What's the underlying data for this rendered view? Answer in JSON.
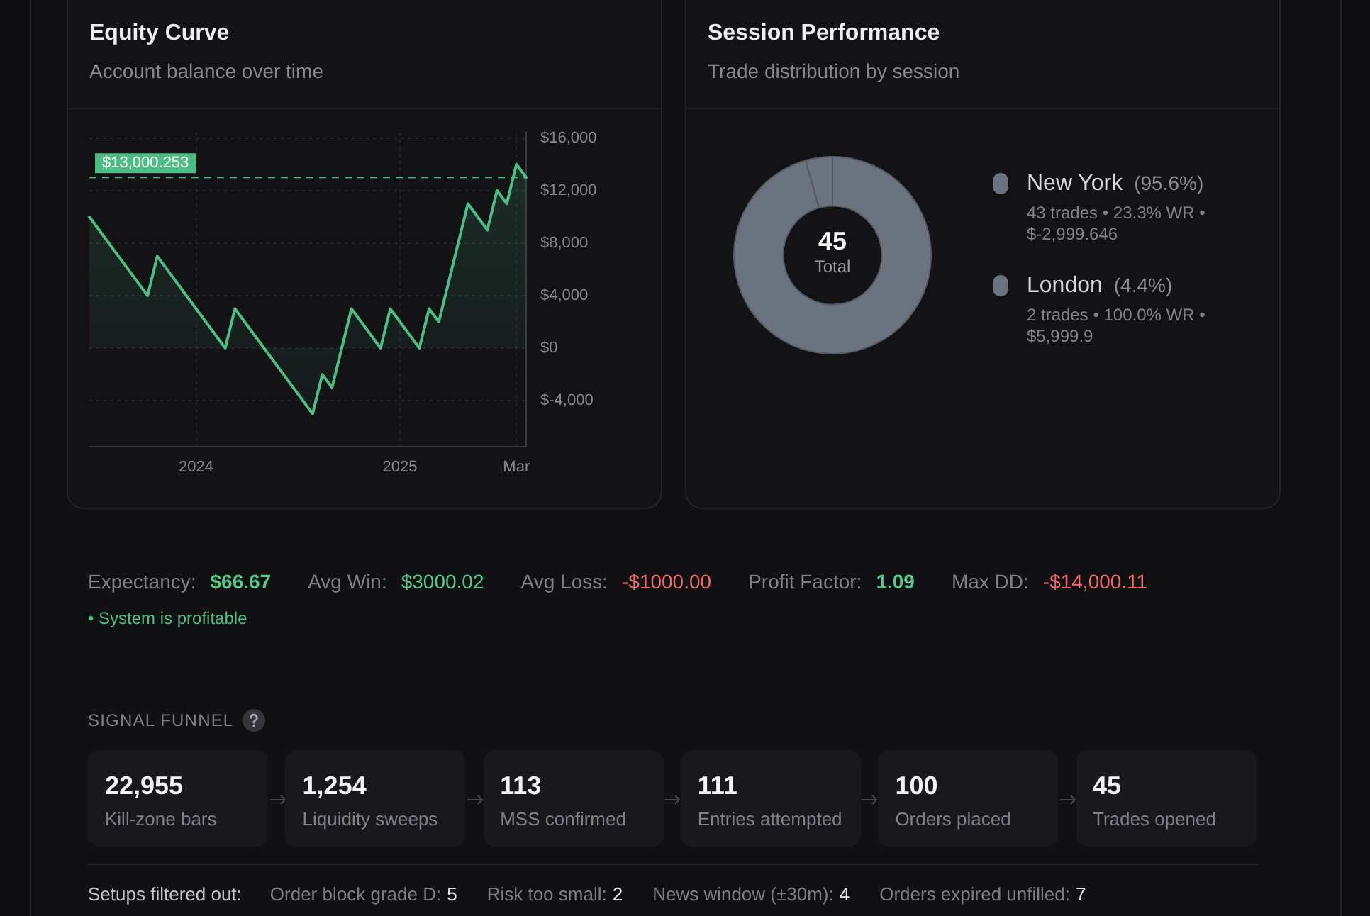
{
  "chart_data": [
    {
      "type": "area",
      "title": "Equity Curve",
      "subtitle": "Account balance over time",
      "categories": [
        null,
        null,
        null,
        null,
        null,
        null,
        null,
        null,
        null,
        null,
        null,
        "2024",
        null,
        null,
        null,
        null,
        null,
        null,
        null,
        null,
        null,
        null,
        null,
        null,
        null,
        null,
        null,
        null,
        null,
        null,
        null,
        null,
        "2025",
        null,
        null,
        null,
        null,
        null,
        null,
        null,
        null,
        null,
        null,
        null,
        "Mar",
        null
      ],
      "series": [
        {
          "color": "#4dbd85",
          "values": [
            10000,
            9000,
            8000,
            7000,
            6000,
            5000,
            4000,
            7000,
            6000,
            5000,
            4000,
            3000,
            2000,
            1000,
            0,
            3000,
            2000,
            1000,
            0,
            -1000,
            -2000,
            -3000,
            -4000,
            -5000,
            -2000,
            -3000,
            0,
            3000,
            2000,
            1000,
            0,
            3000,
            2000,
            1000,
            0,
            3000,
            2000,
            5000,
            8000,
            11000,
            10000,
            9000,
            12000,
            11000,
            14000,
            13000
          ]
        }
      ],
      "ylim": [
        -7500,
        16400
      ],
      "yticks": [
        {
          "value": 16000,
          "label": "$16,000"
        },
        {
          "value": 12000,
          "label": "$12,000"
        },
        {
          "value": 8000,
          "label": "$8,000"
        },
        {
          "value": 4000,
          "label": "$4,000"
        },
        {
          "value": 0,
          "label": "$0"
        },
        {
          "value": -4000,
          "label": "$-4,000"
        }
      ],
      "grid": true,
      "legend": false,
      "marker": "none",
      "line_style": "solid",
      "ref_lines": [
        {
          "axis": "y",
          "value": 13000.253,
          "label": "$13,000.253",
          "color": "#4dbd85",
          "line_style": "dashed"
        }
      ]
    },
    {
      "type": "donut",
      "title": "Session Performance",
      "subtitle": "Trade distribution by session",
      "categories": [
        "New York",
        "London"
      ],
      "values": [
        95.6,
        4.4
      ],
      "colors": [
        "#6b7280",
        "#6b7280"
      ],
      "value_labels": [
        "(95.6%)",
        "(4.4%)"
      ],
      "legend": "right",
      "annotations": [
        "45",
        "Total",
        "43 trades • 23.3% WR • $-2,999.646",
        "2 trades • 100.0% WR • $5,999.9"
      ]
    },
    {
      "type": "other",
      "annotations": [
        "Expectancy:",
        "$66.67",
        "Avg Win:",
        "$3000.02",
        "Avg Loss:",
        "-$1000.00",
        "Profit Factor:",
        "1.09",
        "Max DD:",
        "-$14,000.11",
        "• System is profitable"
      ]
    },
    {
      "type": "other",
      "title": "SIGNAL FUNNEL",
      "annotations": [
        "22,955",
        "Kill-zone bars",
        "1,254",
        "Liquidity sweeps",
        "113",
        "MSS confirmed",
        "111",
        "Entries attempted",
        "100",
        "Orders placed",
        "45",
        "Trades opened"
      ]
    },
    {
      "type": "other",
      "title": "Setups filtered out:",
      "annotations": [
        "Order block grade D:",
        "5",
        "Risk too small:",
        "2",
        "News window (±30m):",
        "4",
        "Orders expired unfilled:",
        "7"
      ]
    }
  ]
}
